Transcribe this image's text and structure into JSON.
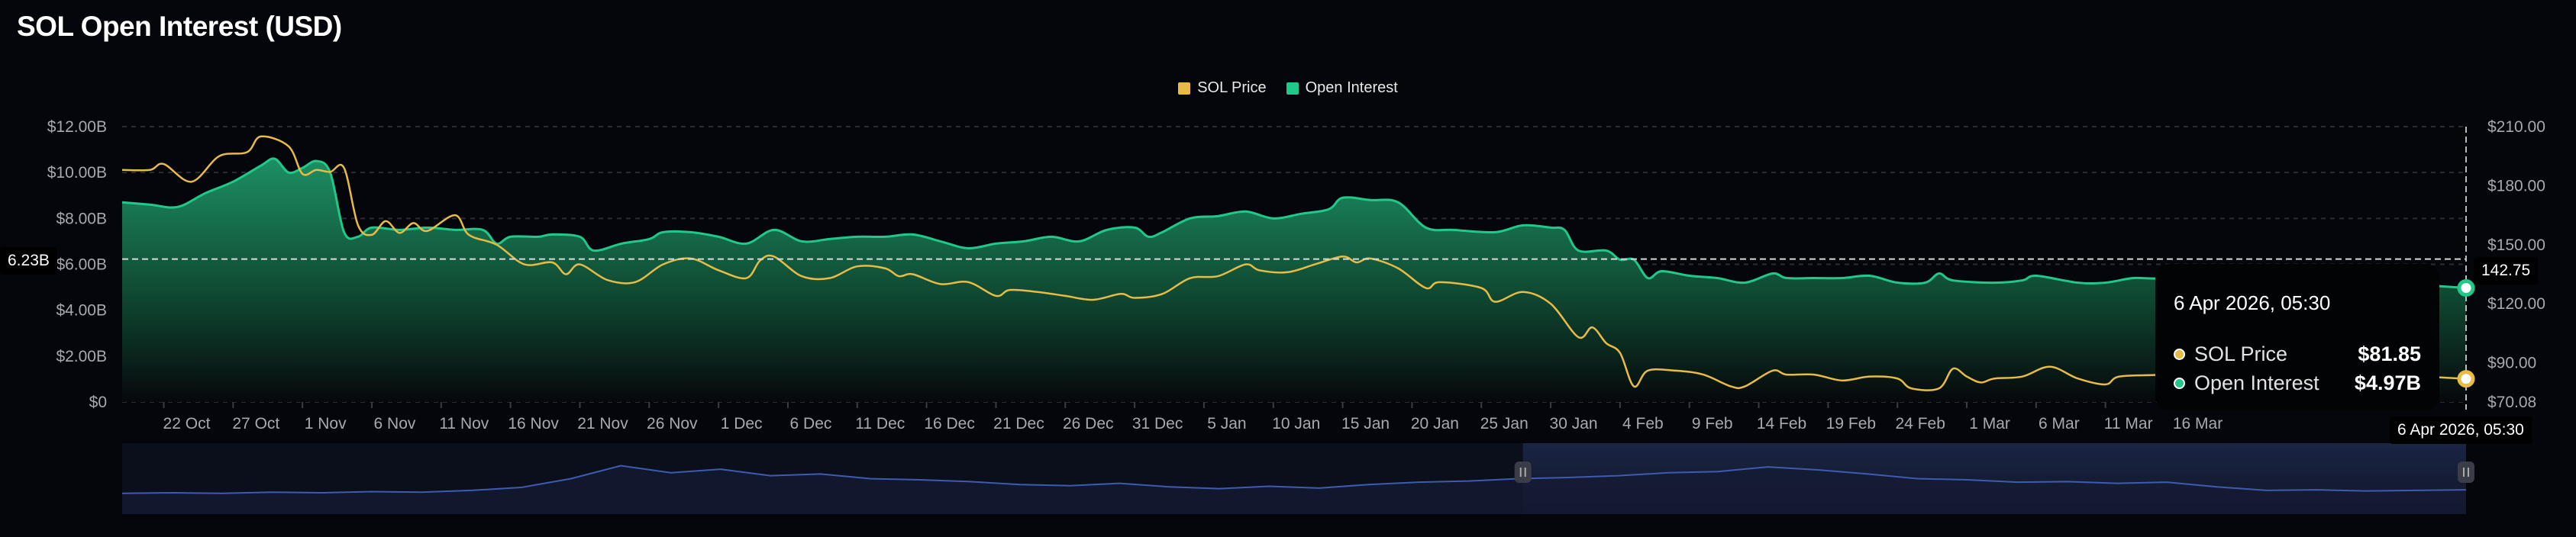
{
  "page": {
    "title": "SOL Open Interest (USD)"
  },
  "legend": [
    {
      "label": "SOL Price",
      "color": "#e8bb45"
    },
    {
      "label": "Open Interest",
      "color": "#1fc98a"
    }
  ],
  "crosshair": {
    "left_value": "6.23B",
    "right_value": "142.75",
    "x_label": "6 Apr 2026, 05:30"
  },
  "tooltip": {
    "date": "6 Apr 2026, 05:30",
    "rows": [
      {
        "label": "SOL Price",
        "value": "$81.85"
      },
      {
        "label": "Open Interest",
        "value": "$4.97B"
      }
    ]
  },
  "chart_data": {
    "type": "area",
    "title": "SOL Open Interest (USD)",
    "x_range": [
      "2025-10-19",
      "2026-04-06"
    ],
    "left_axis": {
      "label": "Open Interest",
      "ylim": [
        0,
        12
      ],
      "ticks": [
        "$0",
        "$2.00B",
        "$4.00B",
        "$6.00B",
        "$8.00B",
        "$10.00B",
        "$12.00B"
      ],
      "tick_values": [
        0,
        2,
        4,
        6,
        8,
        10,
        12
      ]
    },
    "right_axis": {
      "label": "SOL Price",
      "ylim": [
        70.08,
        210
      ],
      "ticks": [
        "$70.08",
        "$90.00",
        "$120.00",
        "$150.00",
        "$180.00",
        "$210.00"
      ],
      "tick_values": [
        70.08,
        90,
        120,
        150,
        180,
        210
      ]
    },
    "x_ticks": [
      "22 Oct",
      "27 Oct",
      "1 Nov",
      "6 Nov",
      "11 Nov",
      "16 Nov",
      "21 Nov",
      "26 Nov",
      "1 Dec",
      "6 Dec",
      "11 Dec",
      "16 Dec",
      "21 Dec",
      "26 Dec",
      "31 Dec",
      "5 Jan",
      "10 Jan",
      "15 Jan",
      "20 Jan",
      "25 Jan",
      "30 Jan",
      "4 Feb",
      "9 Feb",
      "14 Feb",
      "19 Feb",
      "24 Feb",
      "1 Mar",
      "6 Mar",
      "11 Mar",
      "16 Mar"
    ],
    "x_tick_dates": [
      "2025-10-22",
      "2025-10-27",
      "2025-11-01",
      "2025-11-06",
      "2025-11-11",
      "2025-11-16",
      "2025-11-21",
      "2025-11-26",
      "2025-12-01",
      "2025-12-06",
      "2025-12-11",
      "2025-12-16",
      "2025-12-21",
      "2025-12-26",
      "2025-12-31",
      "2026-01-05",
      "2026-01-10",
      "2026-01-15",
      "2026-01-20",
      "2026-01-25",
      "2026-01-30",
      "2026-02-04",
      "2026-02-09",
      "2026-02-14",
      "2026-02-19",
      "2026-02-24",
      "2026-03-01",
      "2026-03-06",
      "2026-03-11",
      "2026-03-16"
    ],
    "series": [
      {
        "name": "Open Interest",
        "unit": "B USD",
        "axis": "left",
        "color": "#1fc98a",
        "points": [
          [
            "2025-10-19",
            8.7
          ],
          [
            "2025-10-21",
            8.6
          ],
          [
            "2025-10-23",
            8.5
          ],
          [
            "2025-10-25",
            9.1
          ],
          [
            "2025-10-27",
            9.6
          ],
          [
            "2025-10-29",
            10.3
          ],
          [
            "2025-10-30",
            10.6
          ],
          [
            "2025-10-31",
            10.0
          ],
          [
            "2025-11-01",
            10.2
          ],
          [
            "2025-11-02",
            10.5
          ],
          [
            "2025-11-03",
            10.0
          ],
          [
            "2025-11-04",
            7.4
          ],
          [
            "2025-11-05",
            7.2
          ],
          [
            "2025-11-06",
            7.6
          ],
          [
            "2025-11-08",
            7.5
          ],
          [
            "2025-11-10",
            7.6
          ],
          [
            "2025-11-12",
            7.5
          ],
          [
            "2025-11-14",
            7.5
          ],
          [
            "2025-11-15",
            6.9
          ],
          [
            "2025-11-16",
            7.2
          ],
          [
            "2025-11-18",
            7.2
          ],
          [
            "2025-11-19",
            7.3
          ],
          [
            "2025-11-21",
            7.2
          ],
          [
            "2025-11-22",
            6.6
          ],
          [
            "2025-11-24",
            6.9
          ],
          [
            "2025-11-26",
            7.1
          ],
          [
            "2025-11-27",
            7.4
          ],
          [
            "2025-11-29",
            7.4
          ],
          [
            "2025-12-01",
            7.2
          ],
          [
            "2025-12-03",
            6.9
          ],
          [
            "2025-12-05",
            7.5
          ],
          [
            "2025-12-07",
            7.0
          ],
          [
            "2025-12-09",
            7.1
          ],
          [
            "2025-12-11",
            7.2
          ],
          [
            "2025-12-13",
            7.2
          ],
          [
            "2025-12-15",
            7.3
          ],
          [
            "2025-12-17",
            7.0
          ],
          [
            "2025-12-19",
            6.7
          ],
          [
            "2025-12-21",
            6.9
          ],
          [
            "2025-12-23",
            7.0
          ],
          [
            "2025-12-25",
            7.2
          ],
          [
            "2025-12-27",
            7.0
          ],
          [
            "2025-12-29",
            7.5
          ],
          [
            "2025-12-31",
            7.6
          ],
          [
            "2026-01-01",
            7.2
          ],
          [
            "2026-01-02",
            7.4
          ],
          [
            "2026-01-04",
            8.0
          ],
          [
            "2026-01-06",
            8.1
          ],
          [
            "2026-01-08",
            8.3
          ],
          [
            "2026-01-10",
            8.0
          ],
          [
            "2026-01-12",
            8.2
          ],
          [
            "2026-01-14",
            8.4
          ],
          [
            "2026-01-15",
            8.9
          ],
          [
            "2026-01-17",
            8.8
          ],
          [
            "2026-01-19",
            8.7
          ],
          [
            "2026-01-21",
            7.6
          ],
          [
            "2026-01-23",
            7.5
          ],
          [
            "2026-01-26",
            7.4
          ],
          [
            "2026-01-28",
            7.7
          ],
          [
            "2026-01-30",
            7.6
          ],
          [
            "2026-01-31",
            7.5
          ],
          [
            "2026-02-01",
            6.6
          ],
          [
            "2026-02-03",
            6.6
          ],
          [
            "2026-02-04",
            6.2
          ],
          [
            "2026-02-05",
            6.2
          ],
          [
            "2026-02-06",
            5.4
          ],
          [
            "2026-02-07",
            5.7
          ],
          [
            "2026-02-09",
            5.5
          ],
          [
            "2026-02-11",
            5.4
          ],
          [
            "2026-02-13",
            5.2
          ],
          [
            "2026-02-15",
            5.6
          ],
          [
            "2026-02-16",
            5.4
          ],
          [
            "2026-02-18",
            5.4
          ],
          [
            "2026-02-20",
            5.4
          ],
          [
            "2026-02-22",
            5.5
          ],
          [
            "2026-02-24",
            5.2
          ],
          [
            "2026-02-26",
            5.2
          ],
          [
            "2026-02-27",
            5.6
          ],
          [
            "2026-02-28",
            5.3
          ],
          [
            "2026-03-03",
            5.2
          ],
          [
            "2026-03-05",
            5.3
          ],
          [
            "2026-03-06",
            5.5
          ],
          [
            "2026-03-09",
            5.2
          ],
          [
            "2026-03-11",
            5.2
          ],
          [
            "2026-03-13",
            5.4
          ],
          [
            "2026-03-15",
            5.4
          ],
          [
            "2026-03-17",
            5.8
          ],
          [
            "2026-03-20",
            5.3
          ],
          [
            "2026-03-23",
            5.3
          ],
          [
            "2026-03-26",
            5.5
          ],
          [
            "2026-03-29",
            5.2
          ],
          [
            "2026-04-01",
            5.25
          ],
          [
            "2026-04-03",
            5.1
          ],
          [
            "2026-04-06",
            4.97
          ]
        ]
      },
      {
        "name": "SOL Price",
        "unit": "USD",
        "axis": "right",
        "color": "#e8bb45",
        "points": [
          [
            "2025-10-19",
            188
          ],
          [
            "2025-10-21",
            188
          ],
          [
            "2025-10-22",
            191
          ],
          [
            "2025-10-24",
            182
          ],
          [
            "2025-10-26",
            195
          ],
          [
            "2025-10-28",
            197
          ],
          [
            "2025-10-29",
            205
          ],
          [
            "2025-10-31",
            200
          ],
          [
            "2025-11-01",
            186
          ],
          [
            "2025-11-02",
            188
          ],
          [
            "2025-11-03",
            187
          ],
          [
            "2025-11-04",
            189
          ],
          [
            "2025-11-05",
            160
          ],
          [
            "2025-11-06",
            155
          ],
          [
            "2025-11-07",
            162
          ],
          [
            "2025-11-08",
            156
          ],
          [
            "2025-11-09",
            161
          ],
          [
            "2025-11-10",
            157
          ],
          [
            "2025-11-12",
            165
          ],
          [
            "2025-11-13",
            155
          ],
          [
            "2025-11-15",
            150
          ],
          [
            "2025-11-17",
            140
          ],
          [
            "2025-11-19",
            141
          ],
          [
            "2025-11-20",
            135
          ],
          [
            "2025-11-21",
            140
          ],
          [
            "2025-11-23",
            132
          ],
          [
            "2025-11-25",
            131
          ],
          [
            "2025-11-27",
            140
          ],
          [
            "2025-11-29",
            143
          ],
          [
            "2025-12-01",
            137
          ],
          [
            "2025-12-03",
            133
          ],
          [
            "2025-12-04",
            142
          ],
          [
            "2025-12-05",
            144
          ],
          [
            "2025-12-07",
            134
          ],
          [
            "2025-12-09",
            133
          ],
          [
            "2025-12-11",
            139
          ],
          [
            "2025-12-13",
            138
          ],
          [
            "2025-12-14",
            134
          ],
          [
            "2025-12-15",
            135
          ],
          [
            "2025-12-17",
            130
          ],
          [
            "2025-12-19",
            131
          ],
          [
            "2025-12-21",
            124
          ],
          [
            "2025-12-22",
            127
          ],
          [
            "2025-12-24",
            126
          ],
          [
            "2025-12-26",
            124
          ],
          [
            "2025-12-28",
            122
          ],
          [
            "2025-12-30",
            125
          ],
          [
            "2025-12-31",
            123
          ],
          [
            "2026-01-02",
            125
          ],
          [
            "2026-01-04",
            133
          ],
          [
            "2026-01-06",
            134
          ],
          [
            "2026-01-08",
            140
          ],
          [
            "2026-01-09",
            137
          ],
          [
            "2026-01-11",
            136
          ],
          [
            "2026-01-13",
            140
          ],
          [
            "2026-01-15",
            144
          ],
          [
            "2026-01-16",
            141
          ],
          [
            "2026-01-17",
            143
          ],
          [
            "2026-01-19",
            138
          ],
          [
            "2026-01-21",
            128
          ],
          [
            "2026-01-22",
            131
          ],
          [
            "2026-01-25",
            128
          ],
          [
            "2026-01-26",
            121
          ],
          [
            "2026-01-28",
            126
          ],
          [
            "2026-01-30",
            120
          ],
          [
            "2026-02-01",
            103
          ],
          [
            "2026-02-02",
            108
          ],
          [
            "2026-02-03",
            100
          ],
          [
            "2026-02-04",
            95
          ],
          [
            "2026-02-05",
            78
          ],
          [
            "2026-02-06",
            86
          ],
          [
            "2026-02-08",
            86
          ],
          [
            "2026-02-10",
            84
          ],
          [
            "2026-02-12",
            78
          ],
          [
            "2026-02-13",
            78
          ],
          [
            "2026-02-15",
            86
          ],
          [
            "2026-02-16",
            84
          ],
          [
            "2026-02-18",
            84
          ],
          [
            "2026-02-20",
            81
          ],
          [
            "2026-02-22",
            83
          ],
          [
            "2026-02-24",
            82
          ],
          [
            "2026-02-25",
            77
          ],
          [
            "2026-02-27",
            77
          ],
          [
            "2026-02-28",
            87
          ],
          [
            "2026-03-01",
            83
          ],
          [
            "2026-03-02",
            80
          ],
          [
            "2026-03-03",
            82
          ],
          [
            "2026-03-05",
            83
          ],
          [
            "2026-03-07",
            88
          ],
          [
            "2026-03-09",
            82
          ],
          [
            "2026-03-11",
            79
          ],
          [
            "2026-03-12",
            83
          ],
          [
            "2026-03-15",
            84
          ],
          [
            "2026-03-17",
            86
          ],
          [
            "2026-03-20",
            85
          ],
          [
            "2026-03-23",
            88
          ],
          [
            "2026-03-27",
            86
          ],
          [
            "2026-03-31",
            84
          ],
          [
            "2026-04-03",
            83
          ],
          [
            "2026-04-06",
            81.85
          ]
        ]
      }
    ],
    "navigator": {
      "selected_range": [
        "2026-01-28",
        "2026-04-06"
      ],
      "values": [
        0.25,
        0.26,
        0.25,
        0.27,
        0.26,
        0.28,
        0.27,
        0.3,
        0.35,
        0.5,
        0.72,
        0.6,
        0.66,
        0.55,
        0.58,
        0.5,
        0.48,
        0.45,
        0.4,
        0.38,
        0.42,
        0.36,
        0.33,
        0.37,
        0.34,
        0.4,
        0.44,
        0.46,
        0.5,
        0.52,
        0.55,
        0.6,
        0.62,
        0.7,
        0.65,
        0.58,
        0.5,
        0.48,
        0.44,
        0.45,
        0.42,
        0.44,
        0.36,
        0.3,
        0.31,
        0.29,
        0.3,
        0.31
      ]
    }
  }
}
